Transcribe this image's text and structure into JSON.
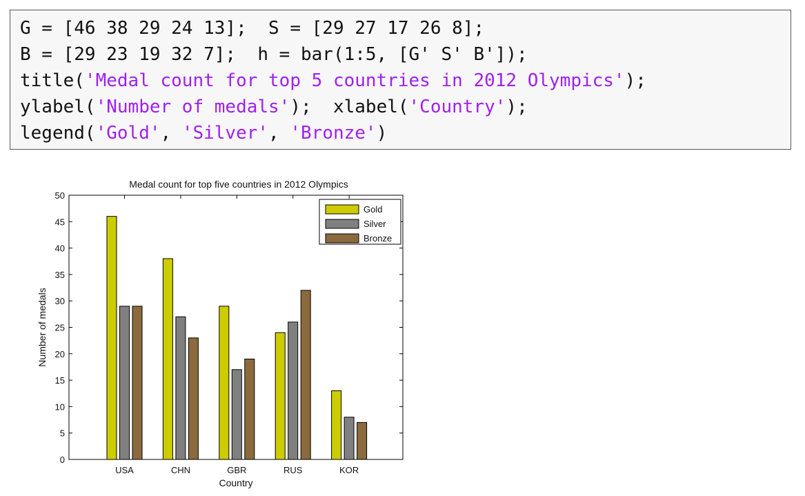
{
  "code": {
    "lines": [
      [
        {
          "t": "G = [46 38 29 24 13];  S = [29 27 17 26 8];",
          "s": false
        }
      ],
      [
        {
          "t": "B = [29 23 19 32 7];  h = bar(1:5, [G' S' B']);",
          "s": false
        }
      ],
      [
        {
          "t": "title(",
          "s": false
        },
        {
          "t": "'Medal count for top 5 countries in 2012 Olympics'",
          "s": true
        },
        {
          "t": ");",
          "s": false
        }
      ],
      [
        {
          "t": "ylabel(",
          "s": false
        },
        {
          "t": "'Number of medals'",
          "s": true
        },
        {
          "t": ");  xlabel(",
          "s": false
        },
        {
          "t": "'Country'",
          "s": true
        },
        {
          "t": ");",
          "s": false
        }
      ],
      [
        {
          "t": "legend(",
          "s": false
        },
        {
          "t": "'Gold'",
          "s": true
        },
        {
          "t": ", ",
          "s": false
        },
        {
          "t": "'Silver'",
          "s": true
        },
        {
          "t": ", ",
          "s": false
        },
        {
          "t": "'Bronze'",
          "s": true
        },
        {
          "t": ")",
          "s": false
        }
      ]
    ],
    "string_color": "#a020f0",
    "text_color": "#111111"
  },
  "chart_data": {
    "type": "bar",
    "title": "Medal count for top five countries in 2012 Olympics",
    "xlabel": "Country",
    "ylabel": "Number of medals",
    "categories": [
      "USA",
      "CHN",
      "GBR",
      "RUS",
      "KOR"
    ],
    "series": [
      {
        "name": "Gold",
        "color": "#cccc00",
        "values": [
          46,
          38,
          29,
          24,
          13
        ]
      },
      {
        "name": "Silver",
        "color": "#808080",
        "values": [
          29,
          27,
          17,
          26,
          8
        ]
      },
      {
        "name": "Bronze",
        "color": "#8b6a3e",
        "values": [
          29,
          23,
          19,
          32,
          7
        ]
      }
    ],
    "ylim": [
      0,
      50
    ],
    "yticks": [
      0,
      5,
      10,
      15,
      20,
      25,
      30,
      35,
      40,
      45,
      50
    ],
    "legend_position": "top-right",
    "grid": false
  }
}
